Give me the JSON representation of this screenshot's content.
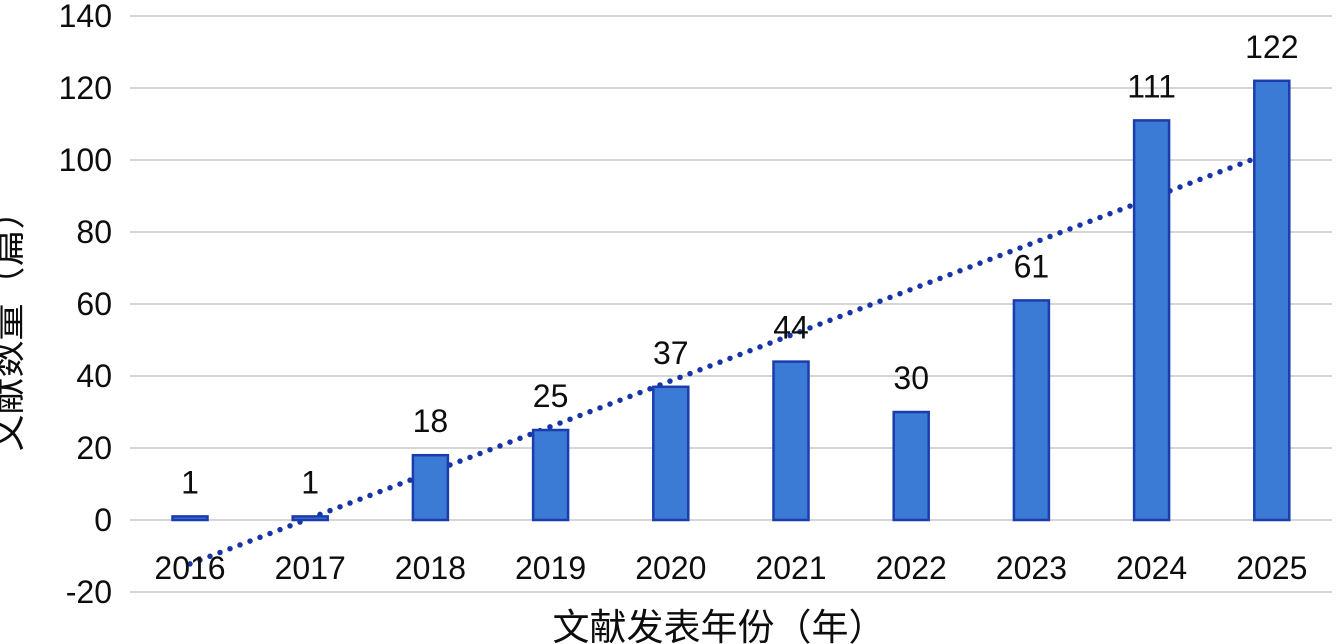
{
  "chart_data": {
    "type": "bar",
    "title": "",
    "categories": [
      "2016",
      "2017",
      "2018",
      "2019",
      "2020",
      "2021",
      "2022",
      "2023",
      "2024",
      "2025"
    ],
    "values": [
      1,
      1,
      18,
      25,
      37,
      44,
      30,
      61,
      111,
      122
    ],
    "data_labels": [
      "1",
      "1",
      "18",
      "25",
      "37",
      "44",
      "30",
      "61",
      "111",
      "122"
    ],
    "xlabel": "文献发表年份（年）",
    "ylabel": "文献数量（篇）",
    "ylim": [
      -20,
      140
    ],
    "yticks": [
      140,
      120,
      100,
      80,
      60,
      40,
      20,
      0,
      -20
    ],
    "grid": true,
    "legend": false,
    "trendline": {
      "type": "linear",
      "style": "dotted",
      "start_value": -12.2,
      "end_value": 102.2
    },
    "colors": {
      "bar_fill": "#3B7AD5",
      "bar_border": "#1B3CAC",
      "trendline": "#1734A6",
      "gridline": "#C8C8C8",
      "text": "#0d0d0d",
      "background": "#FFFFFF"
    }
  }
}
